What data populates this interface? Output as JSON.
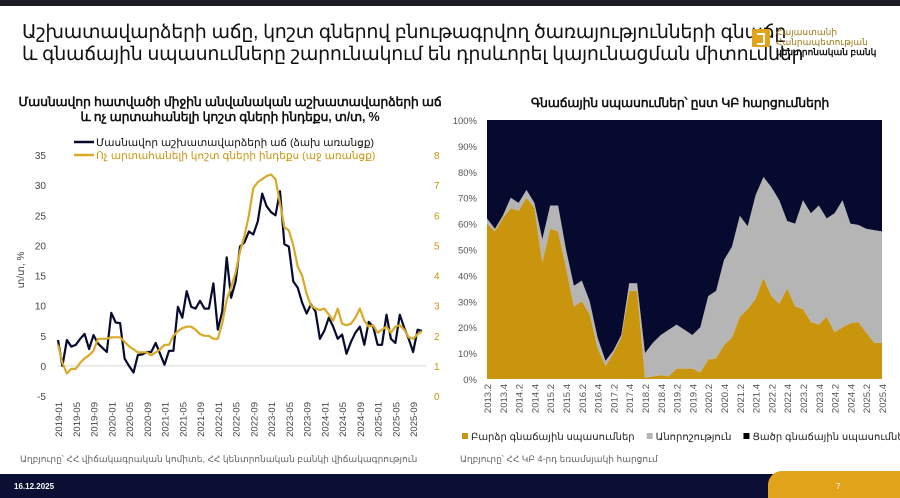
{
  "header": {
    "title_line1": "Աշխատավարձերի աճը, կոշտ գներով բնութագրվող ծառայությունների գնաճը",
    "title_line2": "և գնաճային սպասումները շարունակում են դրսևորել կայունացման միտումներ",
    "logo": {
      "line1": "Հայաստանի",
      "line2": "Հանրապետության",
      "line3": "կենտրոնական բանկ"
    }
  },
  "footer": {
    "date": "16.12.2025",
    "page": "7"
  },
  "colors": {
    "navy": "#050a2e",
    "gold": "#c9950c",
    "gray": "#b5b5b5",
    "line_gold": "#d9a92a"
  },
  "chart_data": [
    {
      "type": "line",
      "title_line1": "Մասնավոր հատվածի միջին անվանական աշխատավարձերի աճ",
      "title_line2": "և ոչ արտահանելի կոշտ գների ինդեքս, տ/տ, %",
      "ylabel": "տ/տ, %",
      "ylim": [
        -5,
        35
      ],
      "y2lim": [
        0,
        8
      ],
      "yticks": [
        "35",
        "30",
        "25",
        "20",
        "15",
        "10",
        "5",
        "0",
        "-5"
      ],
      "y2ticks": [
        "8",
        "7",
        "6",
        "5",
        "4",
        "3",
        "2",
        "1",
        "0"
      ],
      "xticks": [
        "2019-01",
        "2019-05",
        "2019-09",
        "2020-01",
        "2020-05",
        "2020-09",
        "2021-01",
        "2021-05",
        "2021-09",
        "2022-01",
        "2022-05",
        "2022-09",
        "2023-01",
        "2023-05",
        "2023-09",
        "2024-01",
        "2024-05",
        "2024-09",
        "2025-01",
        "2025-05",
        "2025-09"
      ],
      "x_start": "2019-01",
      "series": [
        {
          "name": "Մասնավոր աշխատավարձերի աճ  (ձախ առանցք)",
          "axis": "left",
          "values": [
            4.3,
            0,
            4.3,
            3.2,
            3.5,
            4.5,
            5.3,
            2.8,
            5.1,
            3.7,
            3.0,
            2.3,
            8.8,
            7.2,
            7.1,
            1.2,
            0,
            -1.1,
            1.8,
            1.9,
            2.3,
            2.3,
            3.8,
            2.0,
            0.2,
            2.5,
            2.5,
            9.8,
            8.0,
            12.4,
            9.8,
            9.5,
            10.8,
            9.5,
            9.5,
            13.7,
            6.0,
            9.0,
            18.0,
            11.3,
            14.0,
            19.8,
            20.5,
            22.3,
            21.8,
            24.0,
            28.6,
            26.5,
            25.5,
            25.0,
            29.0,
            20.2,
            19.8,
            14.0,
            13.0,
            10.5,
            8.7,
            10.2,
            9.0,
            4.5,
            5.8,
            8.0,
            6.5,
            4.5,
            5.2,
            2.0,
            4.0,
            5.5,
            6.5,
            3.5,
            7.3,
            6.5,
            3.5,
            3.5,
            8.5,
            4.5,
            3.8,
            8.5,
            6.3,
            4.5,
            2.3,
            6.0,
            5.8
          ]
        },
        {
          "name": "Ոչ արտահանելի կոշտ գների ինդեքս (աջ առանցք)",
          "axis": "right",
          "values": [
            1.7,
            1.1,
            0.75,
            0.9,
            0.9,
            1.1,
            1.25,
            1.35,
            1.5,
            1.9,
            1.9,
            1.9,
            1.95,
            1.95,
            1.95,
            1.8,
            1.65,
            1.55,
            1.45,
            1.45,
            1.45,
            1.35,
            1.45,
            1.55,
            1.7,
            1.7,
            2.0,
            2.15,
            2.25,
            2.3,
            2.3,
            2.2,
            2.05,
            2.0,
            2.0,
            1.9,
            1.9,
            2.4,
            3.2,
            3.6,
            4.1,
            4.8,
            5.3,
            6.0,
            6.9,
            7.1,
            7.2,
            7.3,
            7.35,
            7.2,
            6.4,
            5.6,
            5.5,
            5.0,
            4.3,
            4.0,
            3.4,
            3.0,
            2.9,
            2.85,
            2.9,
            2.7,
            2.5,
            2.9,
            2.4,
            2.35,
            2.4,
            2.6,
            2.9,
            2.5,
            2.3,
            2.35,
            2.1,
            2.2,
            2.3,
            2.1,
            2.3,
            2.35,
            2.2,
            1.95,
            1.9,
            2.05,
            2.15
          ]
        }
      ],
      "source": "Աղբյուրը՝ ՀՀ վիճակագրական կոմիտե, ՀՀ կենտրոնական բանկի վիճակագրություն"
    },
    {
      "type": "area",
      "stacked": true,
      "title": "Գնաճային սպասումներ՝ ըստ ԿԲ հարցումների",
      "ylim": [
        0,
        100
      ],
      "yticks": [
        "100%",
        "90%",
        "80%",
        "70%",
        "60%",
        "50%",
        "40%",
        "30%",
        "20%",
        "10%",
        "0%"
      ],
      "xticks": [
        "2013.2",
        "2013.4",
        "2014.2",
        "2014.4",
        "2015.2",
        "2015.4",
        "2016.2",
        "2016.4",
        "2017.2",
        "2017.4",
        "2018.2",
        "2018.4",
        "2019.2",
        "2019.4",
        "2020.2",
        "2020.4",
        "2021.2",
        "2021.4",
        "2022.2",
        "2022.4",
        "2023.2",
        "2023.4",
        "2024.2",
        "2024.4",
        "2025.2",
        "2025.4"
      ],
      "x_start": "2013.2",
      "series": [
        {
          "name": "Բարձր գնաճային սպասումներ",
          "values": [
            60,
            57,
            62,
            66,
            65,
            70,
            66,
            45,
            58,
            57,
            43,
            28,
            30,
            25,
            12,
            5,
            10,
            16,
            34,
            34,
            0.5,
            1,
            1.5,
            1,
            4,
            4,
            4,
            2.5,
            7.5,
            8,
            13,
            16,
            24,
            27,
            31,
            39,
            32,
            29,
            35,
            28,
            27,
            22,
            21,
            24,
            18,
            20,
            21.5,
            22,
            18,
            14,
            14
          ]
        },
        {
          "name": "Անորոշություն",
          "values": [
            2,
            1,
            1,
            4,
            3,
            3,
            2,
            9,
            9,
            10,
            7,
            8,
            8,
            5,
            4,
            2,
            1,
            1,
            3,
            3,
            9.5,
            13,
            15.5,
            18,
            17,
            15,
            13,
            17.5,
            24.5,
            26,
            33,
            35,
            39,
            32,
            40,
            39,
            42,
            40,
            26,
            32,
            42,
            42,
            46,
            38,
            46,
            49,
            38.5,
            37.5,
            40,
            43.5,
            43
          ]
        },
        {
          "name": "Ցածր գնաճային սպասումներ",
          "values": [
            38,
            42,
            37,
            30,
            32,
            27,
            32,
            46,
            33,
            33,
            50,
            64,
            62,
            70,
            84,
            93,
            89,
            83,
            63,
            63,
            90,
            86,
            83,
            81,
            79,
            81,
            83,
            80,
            68,
            66,
            54,
            49,
            37,
            41,
            29,
            22,
            26,
            31,
            39,
            40,
            31,
            36,
            33,
            38,
            36,
            31,
            40,
            40.5,
            42,
            42.5,
            43
          ]
        }
      ],
      "legend_position": "bottom",
      "source": "Աղբյուրը՝ ՀՀ ԿԲ 4-րդ եռամսյակի հարցում"
    }
  ]
}
